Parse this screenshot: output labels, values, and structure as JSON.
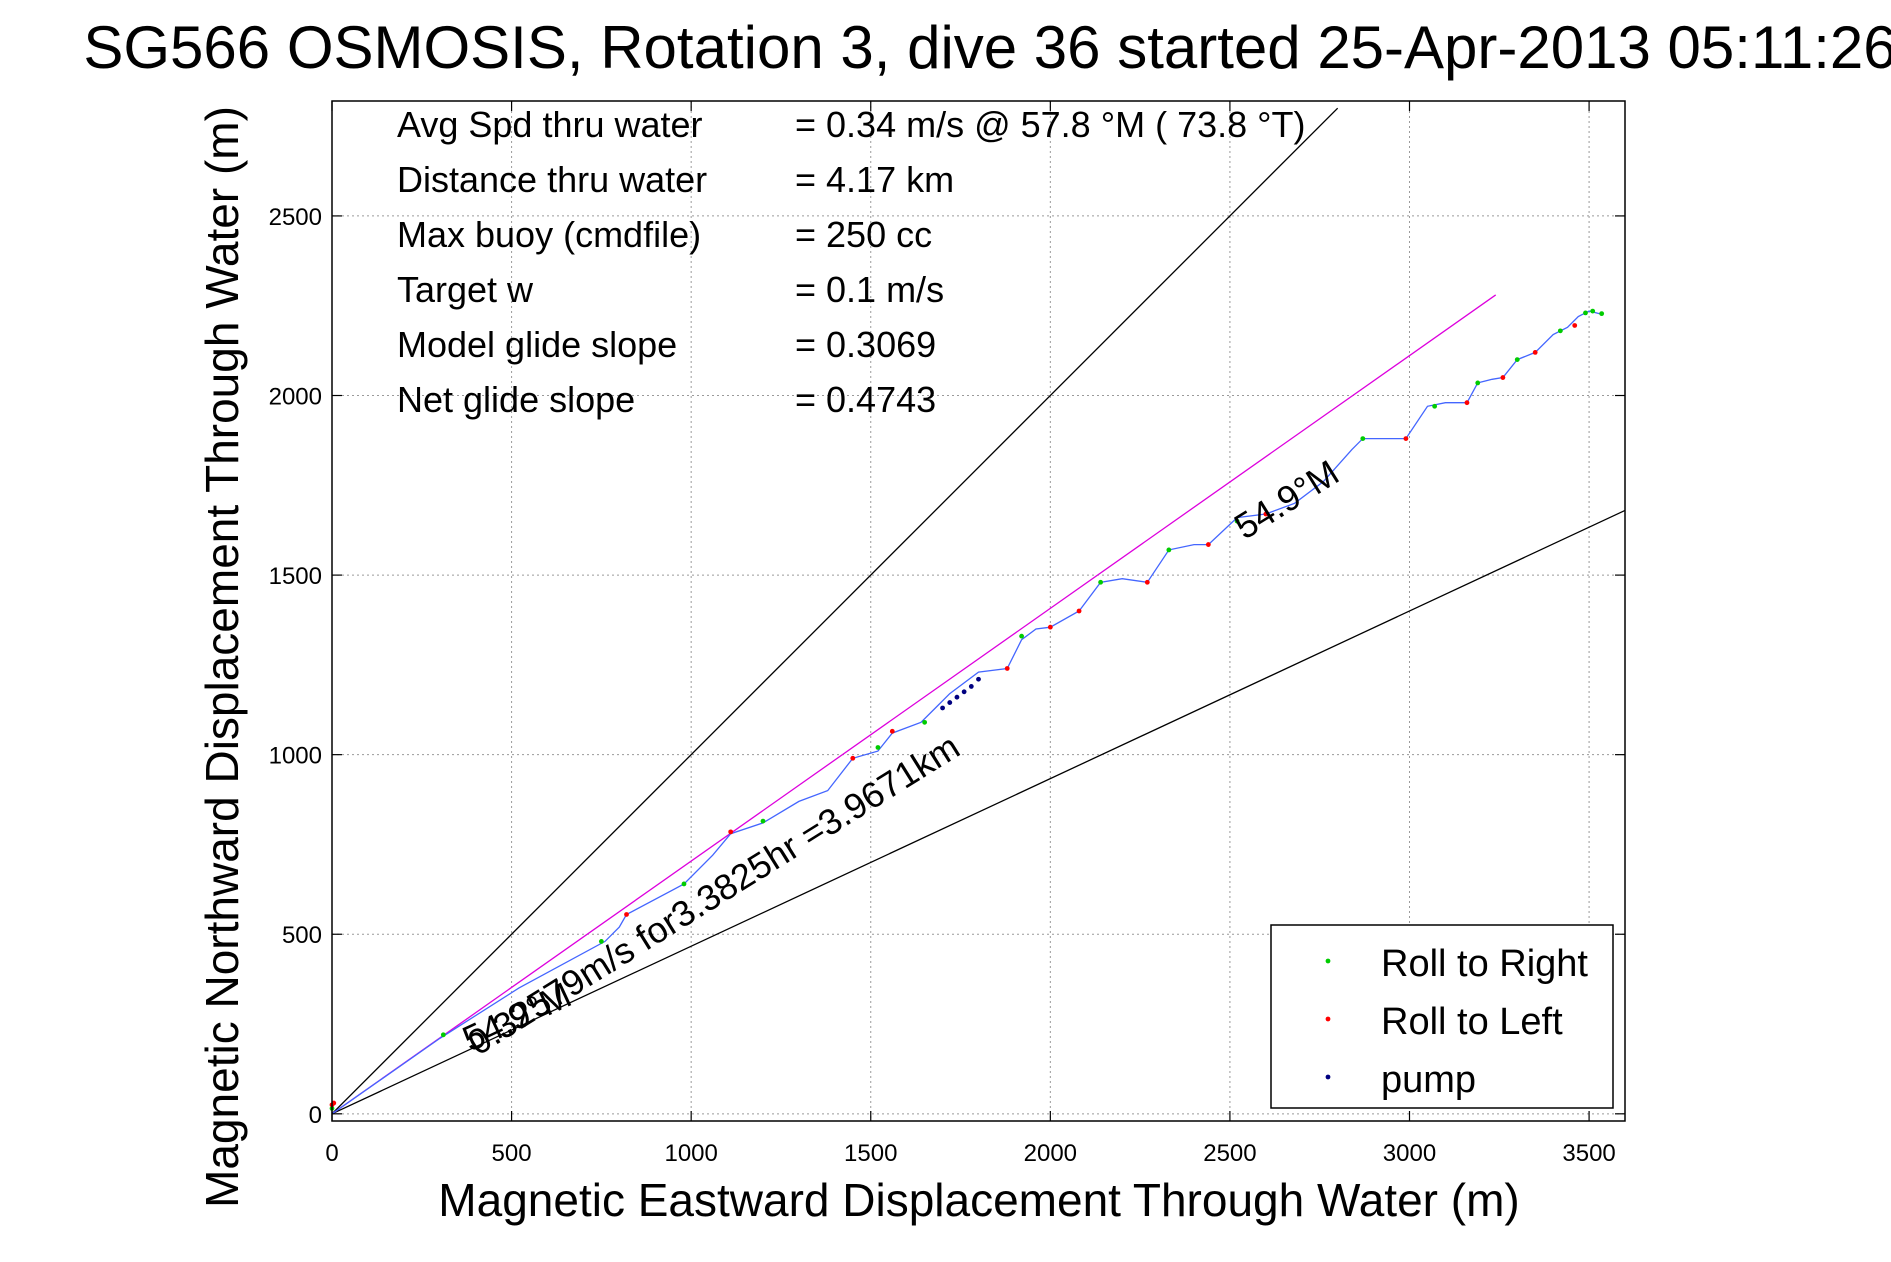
{
  "chart_data": {
    "type": "line",
    "title": "SG566 OSMOSIS, Rotation 3, dive 36 started 25-Apr-2013 05:11:26",
    "xlabel": "Magnetic Eastward Displacement Through Water (m)",
    "ylabel": "Magnetic Northward Displacement Through Water (m)",
    "xlim": [
      0,
      3600
    ],
    "ylim": [
      -20,
      2820
    ],
    "xticks": [
      0,
      500,
      1000,
      1500,
      2000,
      2500,
      3000,
      3500
    ],
    "yticks": [
      0,
      500,
      1000,
      1500,
      2000,
      2500
    ],
    "grid": true,
    "legend_position": "bottom-right",
    "legend": [
      {
        "label": "Roll to Right",
        "color": "#00cc00"
      },
      {
        "label": "Roll to Left",
        "color": "#ff0000"
      },
      {
        "label": "pump",
        "color": "#000080"
      }
    ],
    "stats": [
      {
        "label": "Avg Spd thru water",
        "value": "=  0.34 m/s @  57.8 °M ( 73.8 °T)"
      },
      {
        "label": "Distance thru water",
        "value": "=  4.17 km"
      },
      {
        "label": "Max buoy (cmdfile)",
        "value": "= 250 cc"
      },
      {
        "label": "Target w",
        "value": "= 0.1 m/s"
      },
      {
        "label": "Model glide slope",
        "value": "= 0.3069"
      },
      {
        "label": "Net glide slope",
        "value": "= 0.4743"
      }
    ],
    "annotations": {
      "track_label": "0.32579m/s for3.3825hr =3.9671km",
      "heading_label_lower": "54.9°M",
      "heading_label_upper": "54.9°M"
    },
    "track": {
      "color": "#4466ff",
      "x": [
        0,
        300,
        520,
        760,
        800,
        820,
        980,
        1060,
        1110,
        1200,
        1300,
        1380,
        1450,
        1520,
        1560,
        1640,
        1680,
        1720,
        1800,
        1880,
        1920,
        1960,
        2000,
        2080,
        2140,
        2200,
        2270,
        2330,
        2400,
        2440,
        2520,
        2600,
        2680,
        2760,
        2840,
        2870,
        2960,
        2990,
        3050,
        3100,
        3160,
        3190,
        3230,
        3260,
        3300,
        3350,
        3400,
        3440,
        3470,
        3500,
        3520,
        3540
      ],
      "y": [
        0,
        210,
        350,
        480,
        520,
        555,
        640,
        720,
        780,
        810,
        870,
        900,
        990,
        1010,
        1060,
        1090,
        1130,
        1170,
        1230,
        1240,
        1320,
        1350,
        1355,
        1400,
        1480,
        1490,
        1480,
        1570,
        1585,
        1585,
        1660,
        1670,
        1700,
        1760,
        1850,
        1880,
        1880,
        1880,
        1970,
        1980,
        1980,
        2035,
        2045,
        2050,
        2100,
        2120,
        2170,
        2190,
        2220,
        2235,
        2230,
        2225
      ]
    },
    "markers": {
      "roll_right": {
        "x": [
          0,
          310,
          750,
          980,
          1200,
          1520,
          1650,
          1920,
          2140,
          2330,
          2520,
          2870,
          3070,
          3190,
          3300,
          3420,
          3490,
          3510,
          3535
        ],
        "y": [
          15,
          220,
          480,
          640,
          815,
          1020,
          1090,
          1330,
          1480,
          1570,
          1650,
          1880,
          1970,
          2035,
          2100,
          2180,
          2230,
          2235,
          2228
        ]
      },
      "roll_left": {
        "x": [
          0,
          5,
          820,
          1110,
          1450,
          1560,
          1880,
          2000,
          2080,
          2270,
          2440,
          2600,
          2990,
          3160,
          3260,
          3350,
          3460
        ],
        "y": [
          25,
          30,
          555,
          785,
          990,
          1065,
          1240,
          1355,
          1400,
          1480,
          1585,
          1670,
          1880,
          1980,
          2050,
          2120,
          2195
        ]
      },
      "pump": {
        "x": [
          1700,
          1720,
          1740,
          1760,
          1780,
          1800
        ],
        "y": [
          1130,
          1145,
          1160,
          1175,
          1190,
          1210
        ]
      }
    },
    "reference_lines": [
      {
        "name": "upper",
        "color": "#000000",
        "x": [
          0,
          2800
        ],
        "y": [
          0,
          2800
        ]
      },
      {
        "name": "lower",
        "color": "#000000",
        "x": [
          0,
          3600
        ],
        "y": [
          0,
          1680
        ]
      },
      {
        "name": "model",
        "color": "#dd00dd",
        "x": [
          0,
          3240
        ],
        "y": [
          0,
          2280
        ]
      }
    ]
  }
}
